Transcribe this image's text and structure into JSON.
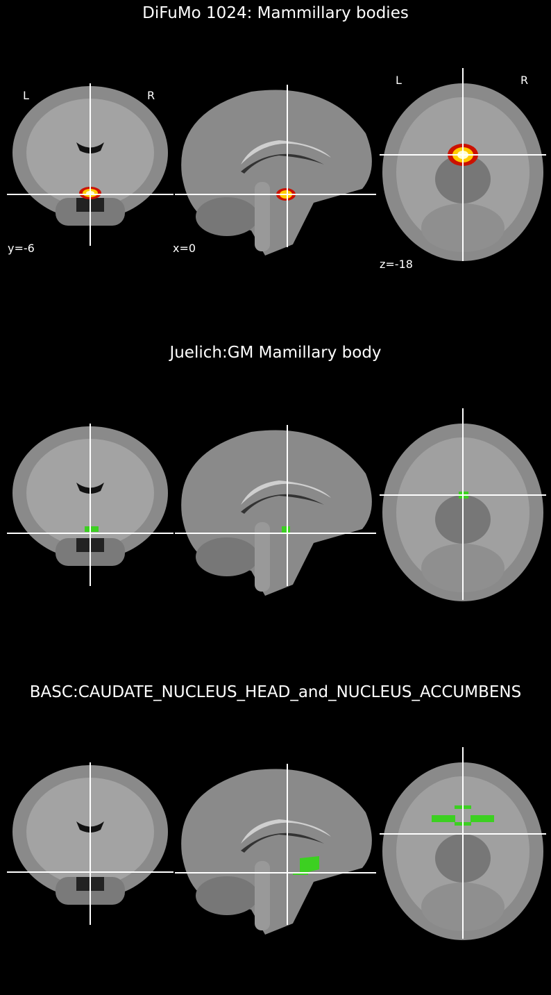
{
  "panels": [
    {
      "title": "DiFuMo 1024: Mammillary bodies",
      "overlay": "hot",
      "labels": {
        "coronal_left": "L",
        "coronal_right": "R",
        "axial_left": "L",
        "axial_right": "R",
        "coronal_coord": "y=-6",
        "sagittal_coord": "x=0",
        "axial_coord": "z=-18"
      }
    },
    {
      "title": "Juelich:GM Mamillary body",
      "overlay": "green-small"
    },
    {
      "title": "BASC:CAUDATE_NUCLEUS_HEAD_and_NUCLEUS_ACCUMBENS",
      "overlay": "green-large"
    }
  ],
  "colors": {
    "background": "#000000",
    "crosshair": "#ffffff",
    "overlay_hot_core": "#ffffd0",
    "overlay_hot_mid": "#ffcc00",
    "overlay_hot_edge": "#cc1100",
    "overlay_green": "#3cd021"
  }
}
